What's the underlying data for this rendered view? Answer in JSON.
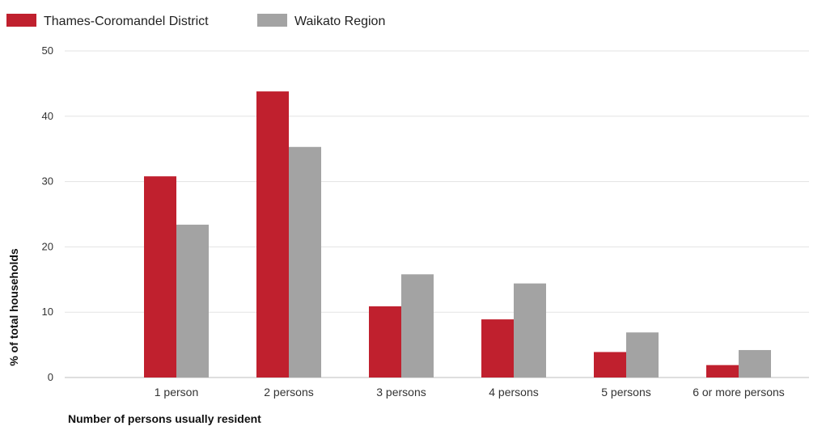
{
  "chart_data": {
    "type": "bar",
    "title": "",
    "xlabel": "Number of persons usually resident",
    "ylabel": "% of total households",
    "ylim": [
      0,
      50
    ],
    "yticks": [
      0,
      10,
      20,
      30,
      40,
      50
    ],
    "grid": true,
    "legend_position": "top-left",
    "categories": [
      "1 person",
      "2 persons",
      "3 persons",
      "4 persons",
      "5 persons",
      "6 or more persons"
    ],
    "series": [
      {
        "name": "Thames-Coromandel District",
        "color": "#c0202e",
        "values": [
          30.8,
          43.8,
          10.9,
          8.9,
          3.9,
          1.9
        ]
      },
      {
        "name": "Waikato Region",
        "color": "#a3a3a3",
        "values": [
          23.4,
          35.3,
          15.8,
          14.4,
          6.9,
          4.2
        ]
      }
    ]
  }
}
